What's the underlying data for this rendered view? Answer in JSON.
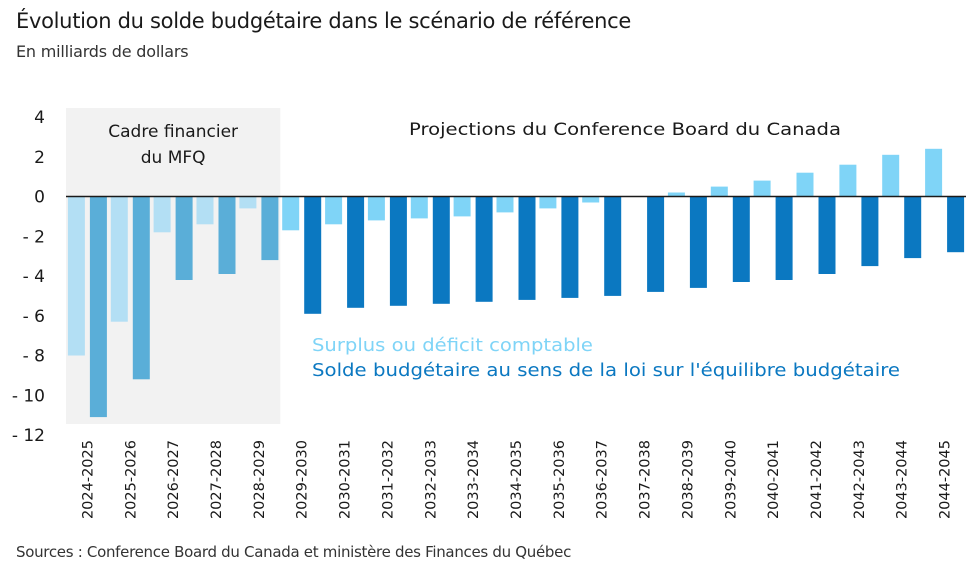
{
  "header": {
    "title": "Évolution du solde budgétaire dans le scénario de référence",
    "subtitle": "En milliards de dollars"
  },
  "footer": {
    "source": "Sources : Conference Board du Canada et ministère des Finances du Québec"
  },
  "annotations": {
    "mfq_line1": "Cadre financier",
    "mfq_line2": "du MFQ",
    "projections": "Projections du Conference Board du Canada"
  },
  "colors": {
    "comptable_mfq": "#b3dff4",
    "equilibre_mfq": "#5aaed8",
    "comptable_proj": "#7fd4f7",
    "equilibre_proj": "#0b78c1",
    "mfq_background": "#f2f2f2"
  },
  "chart_data": {
    "type": "bar",
    "title": "Évolution du solde budgétaire dans le scénario de référence",
    "ylabel": "En milliards de dollars",
    "ylim": [
      -12,
      4
    ],
    "yticks": [
      4,
      2,
      0,
      -2,
      -4,
      -6,
      -8,
      -10,
      -12
    ],
    "ytick_labels": [
      "4",
      "2",
      "0",
      "- 2",
      "- 4",
      "- 6",
      "- 8",
      "- 10",
      "- 12"
    ],
    "grid": false,
    "legend_position": "center-right",
    "categories": [
      "2024-2025",
      "2025-2026",
      "2026-2027",
      "2027-2028",
      "2028-2029",
      "2029-2030",
      "2030-2031",
      "2031-2032",
      "2032-2033",
      "2033-2034",
      "2034-2035",
      "2035-2036",
      "2036-2037",
      "2037-2038",
      "2038-2039",
      "2039-2040",
      "2040-2041",
      "2041-2042",
      "2042-2043",
      "2043-2044",
      "2044-2045"
    ],
    "mfq_period_count": 5,
    "series": [
      {
        "name": "Surplus ou déficit comptable",
        "values": [
          -8.0,
          -6.3,
          -1.8,
          -1.4,
          -0.6,
          -1.7,
          -1.4,
          -1.2,
          -1.1,
          -1.0,
          -0.8,
          -0.6,
          -0.3,
          0.0,
          0.2,
          0.5,
          0.8,
          1.2,
          1.6,
          2.1,
          2.4
        ]
      },
      {
        "name": "Solde budgétaire au sens de la loi sur l'équilibre budgétaire",
        "values": [
          -11.1,
          -9.2,
          -4.2,
          -3.9,
          -3.2,
          -5.9,
          -5.6,
          -5.5,
          -5.4,
          -5.3,
          -5.2,
          -5.1,
          -5.0,
          -4.8,
          -4.6,
          -4.3,
          -4.2,
          -3.9,
          -3.5,
          -3.1,
          -2.8
        ]
      }
    ]
  }
}
